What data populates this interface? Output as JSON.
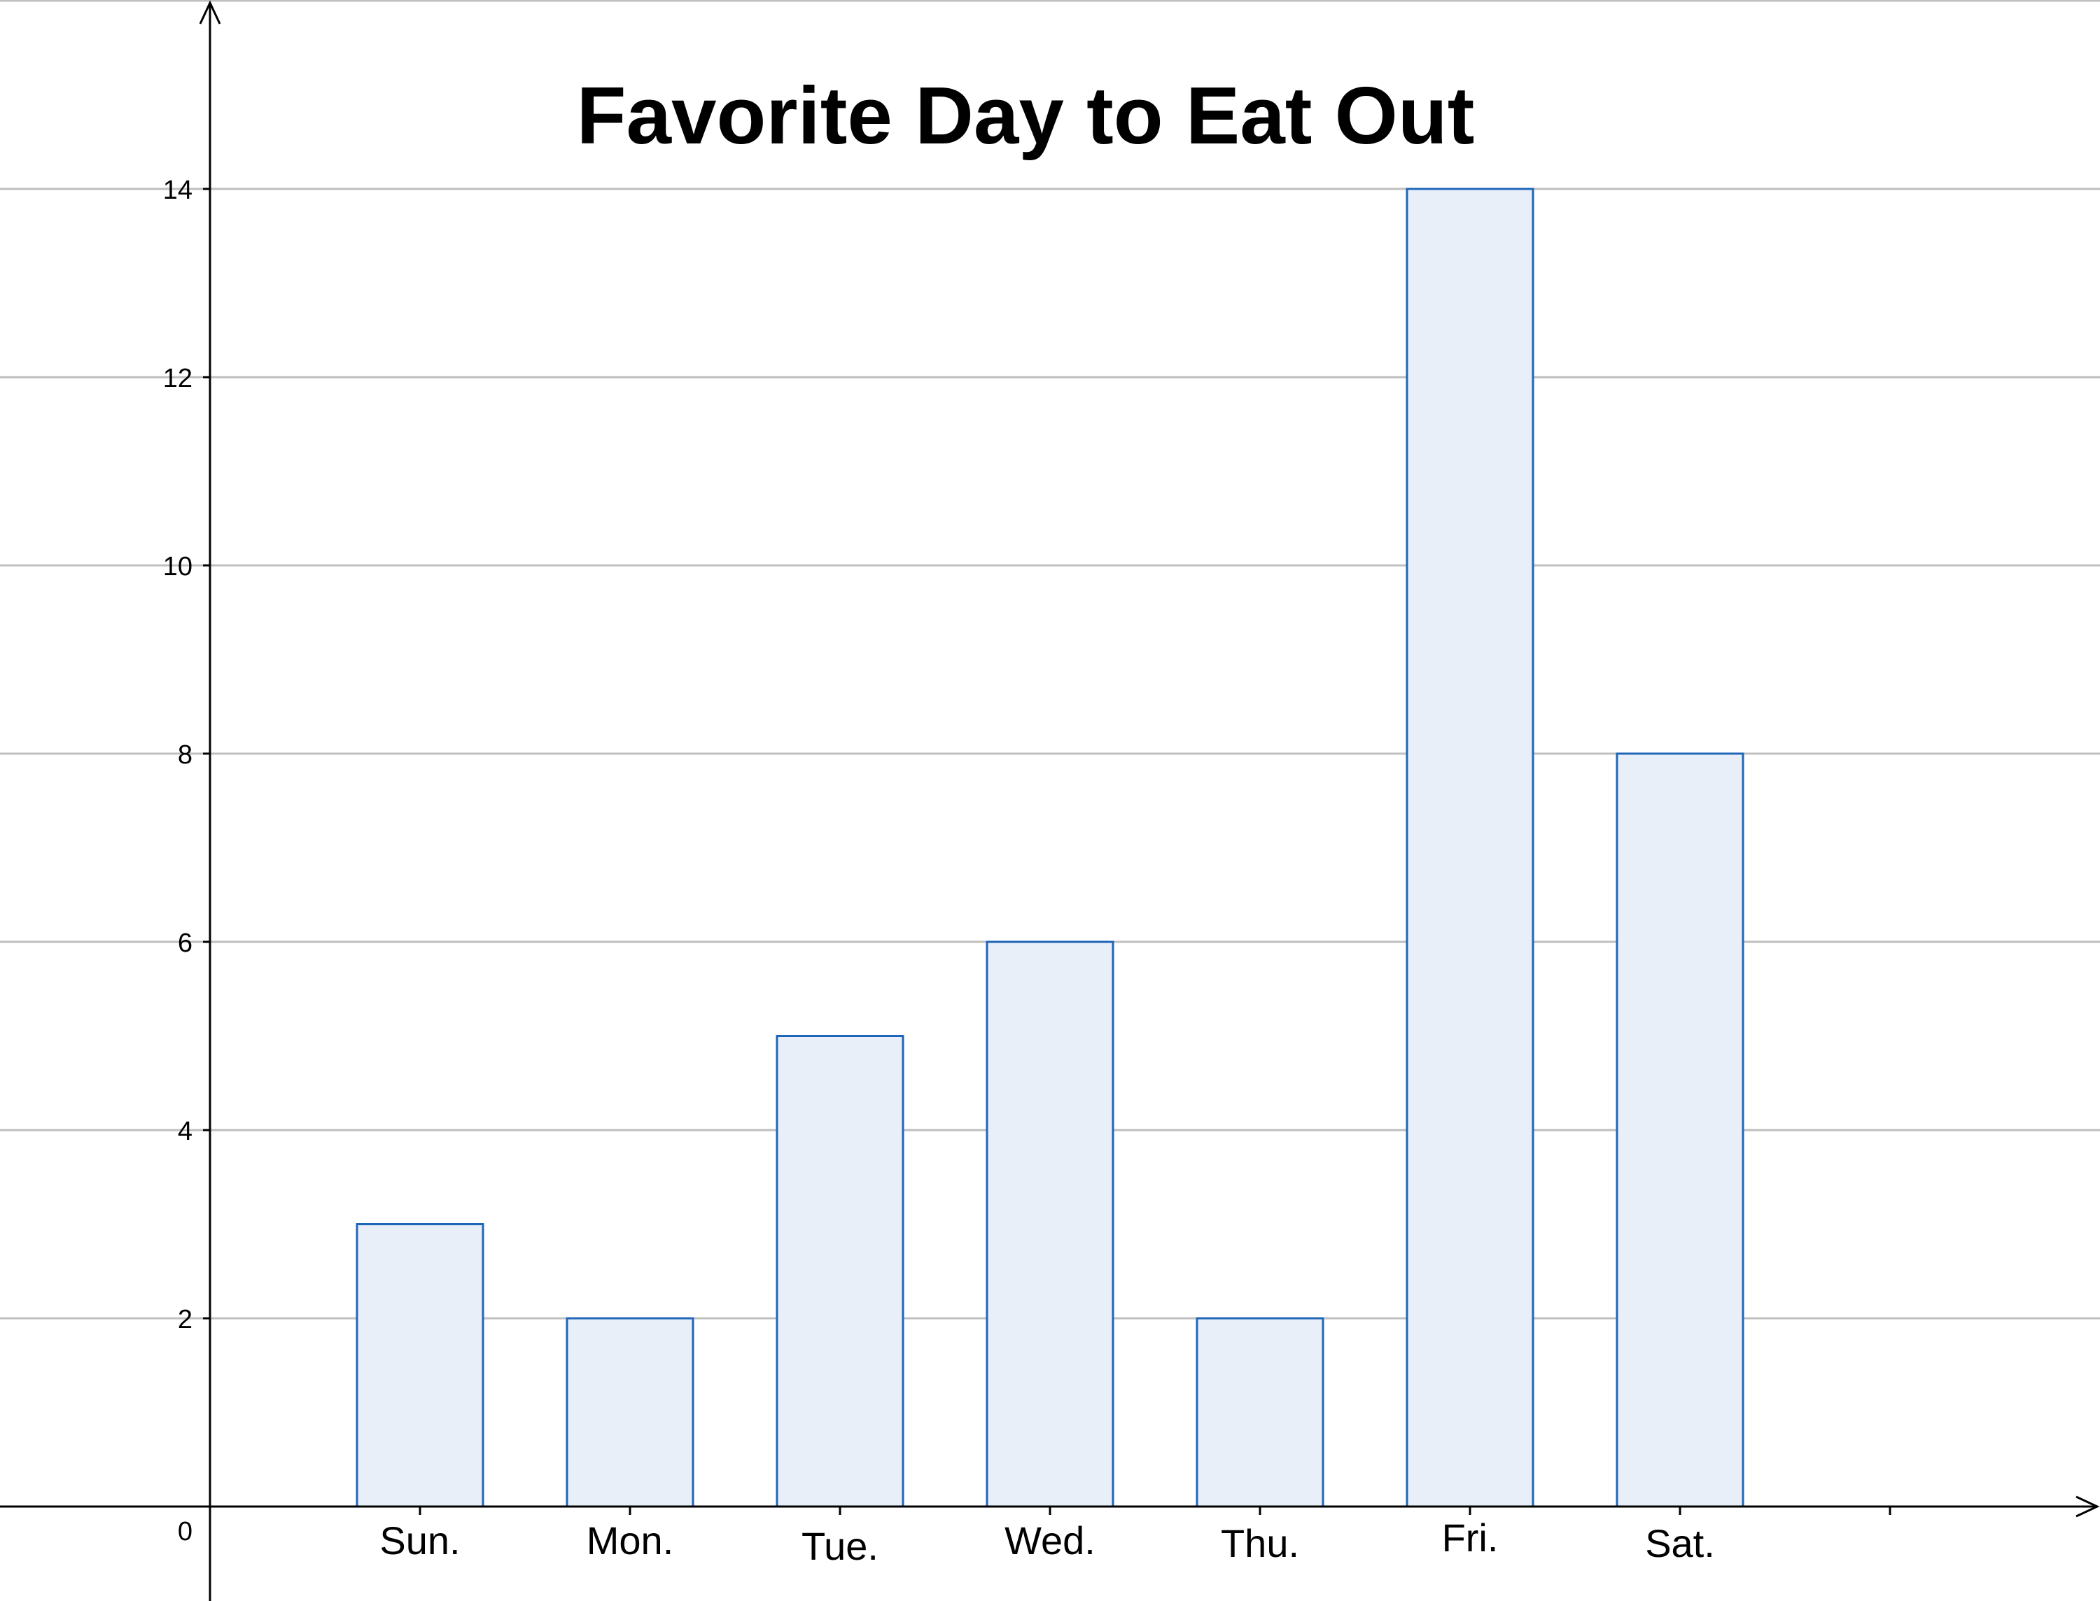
{
  "chart_data": {
    "type": "bar",
    "title": "Favorite Day to Eat Out",
    "xlabel": "",
    "ylabel": "",
    "categories": [
      "Sun.",
      "Mon.",
      "Tue.",
      "Wed.",
      "Thu.",
      "Fri.",
      "Sat."
    ],
    "values": [
      3,
      2,
      5,
      6,
      2,
      14,
      8
    ],
    "yticks": [
      0,
      2,
      4,
      6,
      8,
      10,
      12,
      14
    ],
    "ylim": [
      -1,
      16
    ],
    "grid": true,
    "legend": "none",
    "colors": {
      "bar_fill": "#e8eff9",
      "bar_stroke": "#1f66b8",
      "grid": "#bfbfbf",
      "axis": "#000000"
    }
  }
}
